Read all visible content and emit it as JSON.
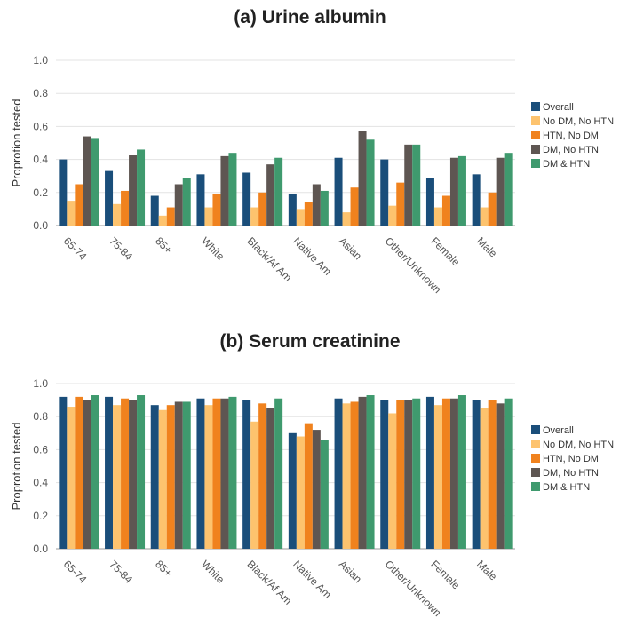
{
  "chart_data": [
    {
      "type": "bar",
      "title": "(a) Urine albumin",
      "ylabel": "Proprotion tested",
      "xlabel": "",
      "ylim": [
        0,
        1.0
      ],
      "yticks": [
        "0.0",
        "0.2",
        "0.4",
        "0.6",
        "0.8",
        "1.0"
      ],
      "grid": true,
      "legend_position": "right",
      "categories": [
        "65-74",
        "75-84",
        "85+",
        "White",
        "Black/Af Am",
        "Native Am",
        "Asian",
        "Other/Unknown",
        "Female",
        "Male"
      ],
      "series": [
        {
          "name": "Overall",
          "color": "#1a4e7a",
          "values": [
            0.4,
            0.33,
            0.18,
            0.31,
            0.32,
            0.19,
            0.41,
            0.4,
            0.29,
            0.31
          ]
        },
        {
          "name": "No DM, No HTN",
          "color": "#fdc36e",
          "values": [
            0.15,
            0.13,
            0.06,
            0.11,
            0.11,
            0.1,
            0.08,
            0.12,
            0.11,
            0.11
          ]
        },
        {
          "name": "HTN, No DM",
          "color": "#f0821e",
          "values": [
            0.25,
            0.21,
            0.11,
            0.19,
            0.2,
            0.14,
            0.23,
            0.26,
            0.18,
            0.2
          ]
        },
        {
          "name": "DM, No HTN",
          "color": "#5e5652",
          "values": [
            0.54,
            0.43,
            0.25,
            0.42,
            0.37,
            0.25,
            0.57,
            0.49,
            0.41,
            0.41
          ]
        },
        {
          "name": "DM & HTN",
          "color": "#3f9a6e",
          "values": [
            0.53,
            0.46,
            0.29,
            0.44,
            0.41,
            0.21,
            0.52,
            0.49,
            0.42,
            0.44
          ]
        }
      ]
    },
    {
      "type": "bar",
      "title": "(b) Serum creatinine",
      "ylabel": "Proprotion tested",
      "xlabel": "",
      "ylim": [
        0,
        1.0
      ],
      "yticks": [
        "0.0",
        "0.2",
        "0.4",
        "0.6",
        "0.8",
        "1.0"
      ],
      "grid": true,
      "legend_position": "right",
      "categories": [
        "65-74",
        "75-84",
        "85+",
        "White",
        "Black/Af Am",
        "Native Am",
        "Asian",
        "Other/Unknown",
        "Female",
        "Male"
      ],
      "series": [
        {
          "name": "Overall",
          "color": "#1a4e7a",
          "values": [
            0.92,
            0.92,
            0.87,
            0.91,
            0.9,
            0.7,
            0.91,
            0.9,
            0.92,
            0.9
          ]
        },
        {
          "name": "No DM, No HTN",
          "color": "#fdc36e",
          "values": [
            0.86,
            0.87,
            0.84,
            0.87,
            0.77,
            0.68,
            0.88,
            0.82,
            0.87,
            0.85
          ]
        },
        {
          "name": "HTN, No DM",
          "color": "#f0821e",
          "values": [
            0.92,
            0.91,
            0.87,
            0.91,
            0.88,
            0.76,
            0.89,
            0.9,
            0.91,
            0.9
          ]
        },
        {
          "name": "DM, No HTN",
          "color": "#5e5652",
          "values": [
            0.9,
            0.9,
            0.89,
            0.91,
            0.85,
            0.72,
            0.92,
            0.9,
            0.91,
            0.88
          ]
        },
        {
          "name": "DM & HTN",
          "color": "#3f9a6e",
          "values": [
            0.93,
            0.93,
            0.89,
            0.92,
            0.91,
            0.66,
            0.93,
            0.91,
            0.93,
            0.91
          ]
        }
      ]
    }
  ]
}
